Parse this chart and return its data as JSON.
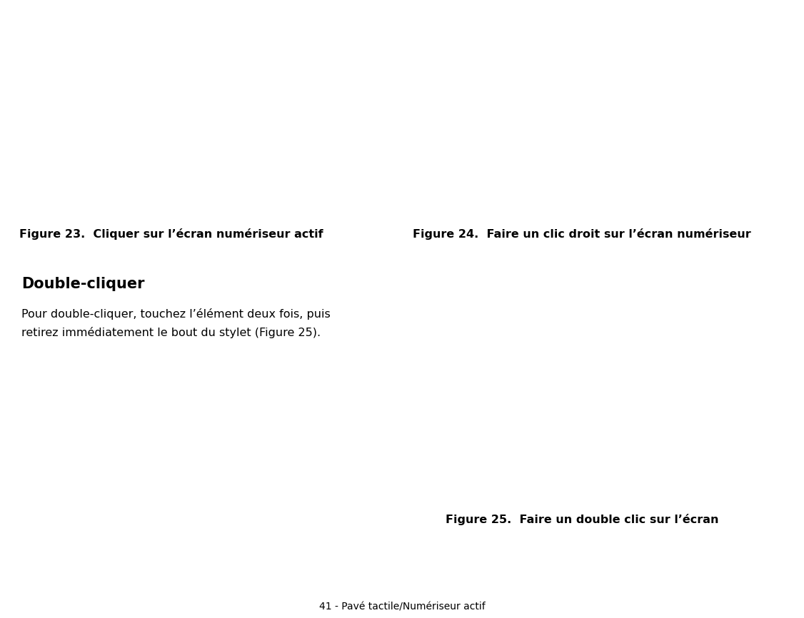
{
  "background_color": "#ffffff",
  "fig_width": 11.26,
  "fig_height": 8.66,
  "fig23_caption": "Figure 23.  Cliquer sur l’écran numériseur actif",
  "fig24_caption": "Figure 24.  Faire un clic droit sur l’écran numériseur",
  "fig25_caption": "Figure 25.  Faire un double clic sur l’écran",
  "section_title": "Double-cliquer",
  "section_body_line1": "Pour double-cliquer, touchez l’élément deux fois, puis",
  "section_body_line2": "retirez immédiatement le bout du stylet (Figure 25).",
  "footer": "41 - Pavé tactile/Numériseur actif",
  "caption_fontsize": 11.5,
  "title_fontsize": 15,
  "body_fontsize": 11.5,
  "footer_fontsize": 10,
  "text_color": "#000000"
}
